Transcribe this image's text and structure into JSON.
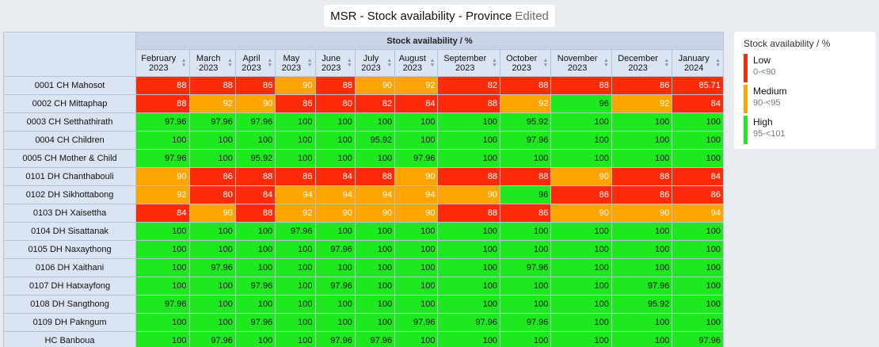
{
  "title": {
    "main": "MSR - Stock availability - Province",
    "status": "Edited"
  },
  "table": {
    "group_header": "Stock availability / %",
    "columns": [
      [
        "February",
        "2023"
      ],
      [
        "March",
        "2023"
      ],
      [
        "April",
        "2023"
      ],
      [
        "May",
        "2023"
      ],
      [
        "June",
        "2023"
      ],
      [
        "July",
        "2023"
      ],
      [
        "August",
        "2023"
      ],
      [
        "September",
        "2023"
      ],
      [
        "October",
        "2023"
      ],
      [
        "November",
        "2023"
      ],
      [
        "December",
        "2023"
      ],
      [
        "January",
        "2024"
      ]
    ],
    "rows": [
      {
        "name": "0001 CH Mahosot",
        "values": [
          "88",
          "88",
          "86",
          "90",
          "88",
          "90",
          "92",
          "82",
          "88",
          "88",
          "86",
          "85.71"
        ]
      },
      {
        "name": "0002 CH Mittaphap",
        "values": [
          "88",
          "92",
          "90",
          "86",
          "80",
          "82",
          "84",
          "88",
          "92",
          "96",
          "92",
          "84"
        ]
      },
      {
        "name": "0003 CH Setthathirath",
        "values": [
          "97.96",
          "97.96",
          "97.96",
          "100",
          "100",
          "100",
          "100",
          "100",
          "95.92",
          "100",
          "100",
          "100"
        ]
      },
      {
        "name": "0004 CH Children",
        "values": [
          "100",
          "100",
          "100",
          "100",
          "100",
          "95.92",
          "100",
          "100",
          "97.96",
          "100",
          "100",
          "100"
        ]
      },
      {
        "name": "0005 CH Mother & Child",
        "values": [
          "97.96",
          "100",
          "95.92",
          "100",
          "100",
          "100",
          "97.96",
          "100",
          "100",
          "100",
          "100",
          "100"
        ]
      },
      {
        "name": "0101 DH Chanthabouli",
        "values": [
          "90",
          "86",
          "88",
          "86",
          "84",
          "88",
          "90",
          "88",
          "88",
          "90",
          "88",
          "84"
        ]
      },
      {
        "name": "0102 DH Sikhottabong",
        "values": [
          "92",
          "80",
          "84",
          "94",
          "94",
          "94",
          "94",
          "90",
          "96",
          "86",
          "86",
          "86"
        ]
      },
      {
        "name": "0103 DH Xaisettha",
        "values": [
          "84",
          "90",
          "88",
          "92",
          "90",
          "90",
          "90",
          "88",
          "86",
          "90",
          "90",
          "94"
        ]
      },
      {
        "name": "0104 DH Sisattanak",
        "values": [
          "100",
          "100",
          "100",
          "97.96",
          "100",
          "100",
          "100",
          "100",
          "100",
          "100",
          "100",
          "100"
        ]
      },
      {
        "name": "0105 DH Naxaythong",
        "values": [
          "100",
          "100",
          "100",
          "100",
          "97.96",
          "100",
          "100",
          "100",
          "100",
          "100",
          "100",
          "100"
        ]
      },
      {
        "name": "0106 DH Xaithani",
        "values": [
          "100",
          "97.96",
          "100",
          "100",
          "100",
          "100",
          "100",
          "100",
          "97.96",
          "100",
          "100",
          "100"
        ]
      },
      {
        "name": "0107 DH Hatxayfong",
        "values": [
          "100",
          "100",
          "97.96",
          "100",
          "97.96",
          "100",
          "100",
          "100",
          "100",
          "100",
          "97.96",
          "100"
        ]
      },
      {
        "name": "0108 DH Sangthong",
        "values": [
          "97.96",
          "100",
          "100",
          "100",
          "100",
          "100",
          "100",
          "100",
          "100",
          "100",
          "95.92",
          "100"
        ]
      },
      {
        "name": "0109 DH Pakngum",
        "values": [
          "100",
          "100",
          "97.96",
          "100",
          "100",
          "100",
          "97.96",
          "97.96",
          "97.96",
          "100",
          "100",
          "100"
        ]
      },
      {
        "name": "HC Banboua",
        "values": [
          "100",
          "97.96",
          "100",
          "100",
          "97.96",
          "97.96",
          "100",
          "100",
          "100",
          "100",
          "100",
          "97.96"
        ]
      }
    ]
  },
  "legend": {
    "title": "Stock availability / %",
    "items": [
      {
        "name": "Low",
        "range": "0-<90",
        "color": "#ff2a0a"
      },
      {
        "name": "Medium",
        "range": "90-<95",
        "color": "#ffa500"
      },
      {
        "name": "High",
        "range": "95-<101",
        "color": "#1ee81e"
      }
    ]
  }
}
